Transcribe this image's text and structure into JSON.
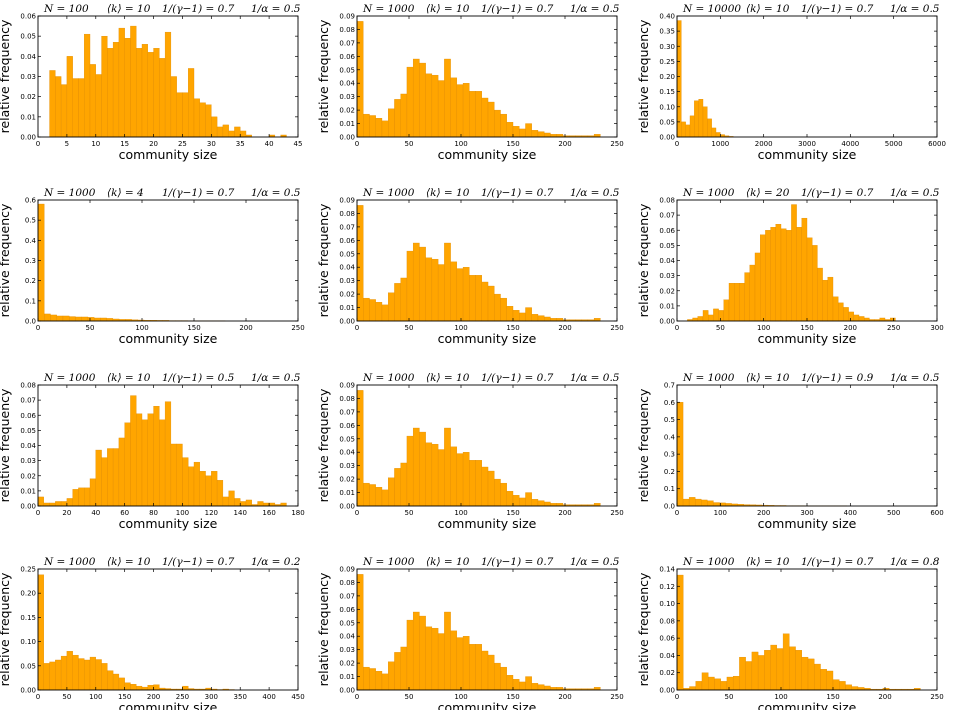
{
  "chart_data": [
    {
      "type": "bar",
      "params": [
        "N = 100",
        "⟨k⟩ = 10",
        "1/(γ−1) = 0.7",
        "1/α = 0.5"
      ],
      "xlabel": "community size",
      "ylabel": "relative frequency",
      "xlim": [
        0,
        45
      ],
      "ylim": [
        0,
        0.06
      ],
      "xticks": [
        0,
        5,
        10,
        15,
        20,
        25,
        30,
        35,
        40,
        45
      ],
      "yticks": [
        0.0,
        0.01,
        0.02,
        0.03,
        0.04,
        0.05,
        0.06
      ],
      "ytick_decimals": 2,
      "bin_width": 1,
      "bin_start": 2,
      "values": [
        0.033,
        0.03,
        0.026,
        0.04,
        0.029,
        0.029,
        0.051,
        0.036,
        0.031,
        0.05,
        0.044,
        0.047,
        0.054,
        0.049,
        0.055,
        0.044,
        0.046,
        0.042,
        0.044,
        0.039,
        0.052,
        0.03,
        0.022,
        0.022,
        0.034,
        0.019,
        0.017,
        0.016,
        0.01,
        0.005,
        0.006,
        0.003,
        0.005,
        0.003,
        0.001,
        0.0,
        0.0,
        0.0,
        0.001,
        0.0,
        0.001
      ]
    },
    {
      "type": "bar",
      "params": [
        "N = 1000",
        "⟨k⟩ = 10",
        "1/(γ−1) = 0.7",
        "1/α = 0.5"
      ],
      "xlabel": "community size",
      "ylabel": "relative frequency",
      "xlim": [
        0,
        250
      ],
      "ylim": [
        0,
        0.09
      ],
      "xticks": [
        0,
        50,
        100,
        150,
        200,
        250
      ],
      "yticks": [
        0.0,
        0.01,
        0.02,
        0.03,
        0.04,
        0.05,
        0.06,
        0.07,
        0.08,
        0.09
      ],
      "ytick_decimals": 2,
      "bin_width": 6,
      "bin_start": 0,
      "values": [
        0.086,
        0.017,
        0.016,
        0.014,
        0.012,
        0.021,
        0.028,
        0.032,
        0.052,
        0.058,
        0.055,
        0.047,
        0.046,
        0.042,
        0.058,
        0.044,
        0.039,
        0.04,
        0.034,
        0.034,
        0.029,
        0.026,
        0.02,
        0.017,
        0.011,
        0.008,
        0.006,
        0.01,
        0.005,
        0.004,
        0.003,
        0.002,
        0.002,
        0.001,
        0.001,
        0.001,
        0.001,
        0.001,
        0.002
      ]
    },
    {
      "type": "bar",
      "params": [
        "N = 10000",
        "⟨k⟩ = 10",
        "1/(γ−1) = 0.7",
        "1/α = 0.5"
      ],
      "xlabel": "community size",
      "ylabel": "relative frequency",
      "xlim": [
        0,
        6000
      ],
      "ylim": [
        0,
        0.4
      ],
      "xticks": [
        0,
        1000,
        2000,
        3000,
        4000,
        5000,
        6000
      ],
      "yticks": [
        0.0,
        0.05,
        0.1,
        0.15,
        0.2,
        0.25,
        0.3,
        0.35,
        0.4
      ],
      "ytick_decimals": 2,
      "bin_width": 100,
      "bin_start": 0,
      "values": [
        0.385,
        0.05,
        0.04,
        0.07,
        0.12,
        0.125,
        0.1,
        0.06,
        0.03,
        0.015,
        0.008,
        0.004,
        0.002
      ]
    },
    {
      "type": "bar",
      "params": [
        "N = 1000",
        "⟨k⟩ = 4",
        "1/(γ−1) = 0.7",
        "1/α = 0.5"
      ],
      "xlabel": "community size",
      "ylabel": "relative frequency",
      "xlim": [
        0,
        250
      ],
      "ylim": [
        0,
        0.6
      ],
      "xticks": [
        0,
        50,
        100,
        150,
        200,
        250
      ],
      "yticks": [
        0.0,
        0.1,
        0.2,
        0.3,
        0.4,
        0.5,
        0.6
      ],
      "ytick_decimals": 1,
      "bin_width": 6,
      "bin_start": 0,
      "values": [
        0.58,
        0.035,
        0.03,
        0.025,
        0.025,
        0.022,
        0.02,
        0.02,
        0.018,
        0.015,
        0.015,
        0.013,
        0.01,
        0.008,
        0.008,
        0.006,
        0.005,
        0.004,
        0.004,
        0.003,
        0.003,
        0.002,
        0.002,
        0.002,
        0.001,
        0.001,
        0.001,
        0.001,
        0.001,
        0.001
      ]
    },
    {
      "type": "bar",
      "params": [
        "N = 1000",
        "⟨k⟩ = 10",
        "1/(γ−1) = 0.7",
        "1/α = 0.5"
      ],
      "xlabel": "community size",
      "ylabel": "relative frequency",
      "xlim": [
        0,
        250
      ],
      "ylim": [
        0,
        0.09
      ],
      "xticks": [
        0,
        50,
        100,
        150,
        200,
        250
      ],
      "yticks": [
        0.0,
        0.01,
        0.02,
        0.03,
        0.04,
        0.05,
        0.06,
        0.07,
        0.08,
        0.09
      ],
      "ytick_decimals": 2,
      "bin_width": 6,
      "bin_start": 0,
      "values": [
        0.086,
        0.017,
        0.016,
        0.014,
        0.012,
        0.021,
        0.028,
        0.032,
        0.052,
        0.058,
        0.055,
        0.047,
        0.046,
        0.042,
        0.058,
        0.044,
        0.039,
        0.04,
        0.034,
        0.034,
        0.029,
        0.026,
        0.02,
        0.017,
        0.011,
        0.008,
        0.006,
        0.01,
        0.005,
        0.004,
        0.003,
        0.002,
        0.002,
        0.001,
        0.001,
        0.001,
        0.001,
        0.001,
        0.002
      ]
    },
    {
      "type": "bar",
      "params": [
        "N = 1000",
        "⟨k⟩ = 20",
        "1/(γ−1) = 0.7",
        "1/α = 0.5"
      ],
      "xlabel": "community size",
      "ylabel": "relative frequency",
      "xlim": [
        0,
        300
      ],
      "ylim": [
        0,
        0.08
      ],
      "xticks": [
        0,
        50,
        100,
        150,
        200,
        250,
        300
      ],
      "yticks": [
        0.0,
        0.01,
        0.02,
        0.03,
        0.04,
        0.05,
        0.06,
        0.07,
        0.08
      ],
      "ytick_decimals": 2,
      "bin_width": 6,
      "bin_start": 12,
      "values": [
        0.001,
        0.002,
        0.003,
        0.007,
        0.004,
        0.008,
        0.007,
        0.014,
        0.025,
        0.025,
        0.025,
        0.032,
        0.037,
        0.045,
        0.057,
        0.06,
        0.062,
        0.064,
        0.061,
        0.06,
        0.077,
        0.062,
        0.068,
        0.055,
        0.05,
        0.035,
        0.027,
        0.029,
        0.016,
        0.012,
        0.009,
        0.006,
        0.004,
        0.003,
        0.002,
        0.001,
        0.001,
        0.002,
        0.001,
        0.002
      ]
    },
    {
      "type": "bar",
      "params": [
        "N = 1000",
        "⟨k⟩ = 10",
        "1/(γ−1) = 0.5",
        "1/α = 0.5"
      ],
      "xlabel": "community size",
      "ylabel": "relative frequency",
      "xlim": [
        0,
        180
      ],
      "ylim": [
        0,
        0.08
      ],
      "xticks": [
        0,
        20,
        40,
        60,
        80,
        100,
        120,
        140,
        160,
        180
      ],
      "yticks": [
        0.0,
        0.01,
        0.02,
        0.03,
        0.04,
        0.05,
        0.06,
        0.07,
        0.08
      ],
      "ytick_decimals": 2,
      "bin_width": 4,
      "bin_start": 0,
      "values": [
        0.006,
        0.002,
        0.002,
        0.003,
        0.003,
        0.005,
        0.011,
        0.012,
        0.012,
        0.018,
        0.037,
        0.032,
        0.038,
        0.038,
        0.045,
        0.055,
        0.073,
        0.061,
        0.057,
        0.061,
        0.066,
        0.057,
        0.069,
        0.041,
        0.041,
        0.032,
        0.026,
        0.029,
        0.023,
        0.02,
        0.023,
        0.017,
        0.006,
        0.01,
        0.005,
        0.003,
        0.004,
        0.001,
        0.003,
        0.002,
        0.002,
        0.001,
        0.002
      ]
    },
    {
      "type": "bar",
      "params": [
        "N = 1000",
        "⟨k⟩ = 10",
        "1/(γ−1) = 0.7",
        "1/α = 0.5"
      ],
      "xlabel": "community size",
      "ylabel": "relative frequency",
      "xlim": [
        0,
        250
      ],
      "ylim": [
        0,
        0.09
      ],
      "xticks": [
        0,
        50,
        100,
        150,
        200,
        250
      ],
      "yticks": [
        0.0,
        0.01,
        0.02,
        0.03,
        0.04,
        0.05,
        0.06,
        0.07,
        0.08,
        0.09
      ],
      "ytick_decimals": 2,
      "bin_width": 6,
      "bin_start": 0,
      "values": [
        0.086,
        0.017,
        0.016,
        0.014,
        0.012,
        0.021,
        0.028,
        0.032,
        0.052,
        0.058,
        0.055,
        0.047,
        0.046,
        0.042,
        0.058,
        0.044,
        0.039,
        0.04,
        0.034,
        0.034,
        0.029,
        0.026,
        0.02,
        0.017,
        0.011,
        0.008,
        0.006,
        0.01,
        0.005,
        0.004,
        0.003,
        0.002,
        0.002,
        0.001,
        0.001,
        0.001,
        0.001,
        0.001,
        0.002
      ]
    },
    {
      "type": "bar",
      "params": [
        "N = 1000",
        "⟨k⟩ = 10",
        "1/(γ−1) = 0.9",
        "1/α = 0.5"
      ],
      "xlabel": "community size",
      "ylabel": "relative frequency",
      "xlim": [
        0,
        600
      ],
      "ylim": [
        0,
        0.7
      ],
      "xticks": [
        0,
        100,
        200,
        300,
        400,
        500,
        600
      ],
      "yticks": [
        0.0,
        0.1,
        0.2,
        0.3,
        0.4,
        0.5,
        0.6,
        0.7
      ],
      "ytick_decimals": 1,
      "bin_width": 14,
      "bin_start": 0,
      "values": [
        0.6,
        0.04,
        0.05,
        0.04,
        0.035,
        0.03,
        0.02,
        0.018,
        0.015,
        0.012,
        0.01,
        0.008,
        0.007,
        0.006,
        0.005,
        0.004,
        0.003,
        0.003,
        0.002,
        0.002,
        0.002,
        0.001,
        0.001,
        0.001,
        0.001,
        0.001,
        0.001,
        0.001
      ]
    },
    {
      "type": "bar",
      "params": [
        "N = 1000",
        "⟨k⟩ = 10",
        "1/(γ−1) = 0.7",
        "1/α = 0.2"
      ],
      "xlabel": "community size",
      "ylabel": "relative frequency",
      "xlim": [
        0,
        450
      ],
      "ylim": [
        0,
        0.25
      ],
      "xticks": [
        0,
        50,
        100,
        150,
        200,
        250,
        300,
        350,
        400,
        450
      ],
      "yticks": [
        0.0,
        0.05,
        0.1,
        0.15,
        0.2,
        0.25
      ],
      "ytick_decimals": 2,
      "bin_width": 10,
      "bin_start": 0,
      "values": [
        0.238,
        0.055,
        0.058,
        0.062,
        0.07,
        0.08,
        0.072,
        0.065,
        0.062,
        0.068,
        0.063,
        0.055,
        0.04,
        0.033,
        0.025,
        0.015,
        0.012,
        0.008,
        0.006,
        0.01,
        0.011,
        0.004,
        0.003,
        0.002,
        0.002,
        0.008,
        0.003,
        0.002,
        0.002,
        0.004,
        0.002,
        0.001,
        0.002,
        0.001
      ]
    },
    {
      "type": "bar",
      "params": [
        "N = 1000",
        "⟨k⟩ = 10",
        "1/(γ−1) = 0.7",
        "1/α = 0.5"
      ],
      "xlabel": "community size",
      "ylabel": "relative frequency",
      "xlim": [
        0,
        250
      ],
      "ylim": [
        0,
        0.09
      ],
      "xticks": [
        0,
        50,
        100,
        150,
        200,
        250
      ],
      "yticks": [
        0.0,
        0.01,
        0.02,
        0.03,
        0.04,
        0.05,
        0.06,
        0.07,
        0.08,
        0.09
      ],
      "ytick_decimals": 2,
      "bin_width": 6,
      "bin_start": 0,
      "values": [
        0.086,
        0.017,
        0.016,
        0.014,
        0.012,
        0.021,
        0.028,
        0.032,
        0.052,
        0.058,
        0.055,
        0.047,
        0.046,
        0.042,
        0.058,
        0.044,
        0.039,
        0.04,
        0.034,
        0.034,
        0.029,
        0.026,
        0.02,
        0.017,
        0.011,
        0.008,
        0.006,
        0.01,
        0.005,
        0.004,
        0.003,
        0.002,
        0.002,
        0.001,
        0.001,
        0.001,
        0.001,
        0.001,
        0.002
      ]
    },
    {
      "type": "bar",
      "params": [
        "N = 1000",
        "⟨k⟩ = 10",
        "1/(γ−1) = 0.7",
        "1/α = 0.8"
      ],
      "xlabel": "community size",
      "ylabel": "relative frequency",
      "xlim": [
        0,
        250
      ],
      "ylim": [
        0,
        0.14
      ],
      "xticks": [
        0,
        50,
        100,
        150,
        200,
        250
      ],
      "yticks": [
        0.0,
        0.02,
        0.04,
        0.06,
        0.08,
        0.1,
        0.12,
        0.14
      ],
      "ytick_decimals": 2,
      "bin_width": 6,
      "bin_start": 0,
      "values": [
        0.133,
        0.002,
        0.004,
        0.01,
        0.02,
        0.015,
        0.013,
        0.01,
        0.015,
        0.016,
        0.038,
        0.033,
        0.044,
        0.04,
        0.046,
        0.052,
        0.048,
        0.065,
        0.05,
        0.046,
        0.038,
        0.036,
        0.03,
        0.024,
        0.022,
        0.012,
        0.01,
        0.006,
        0.004,
        0.003,
        0.002,
        0.001,
        0.001,
        0.002,
        0.001,
        0.001,
        0.001,
        0.001,
        0.002
      ]
    }
  ]
}
